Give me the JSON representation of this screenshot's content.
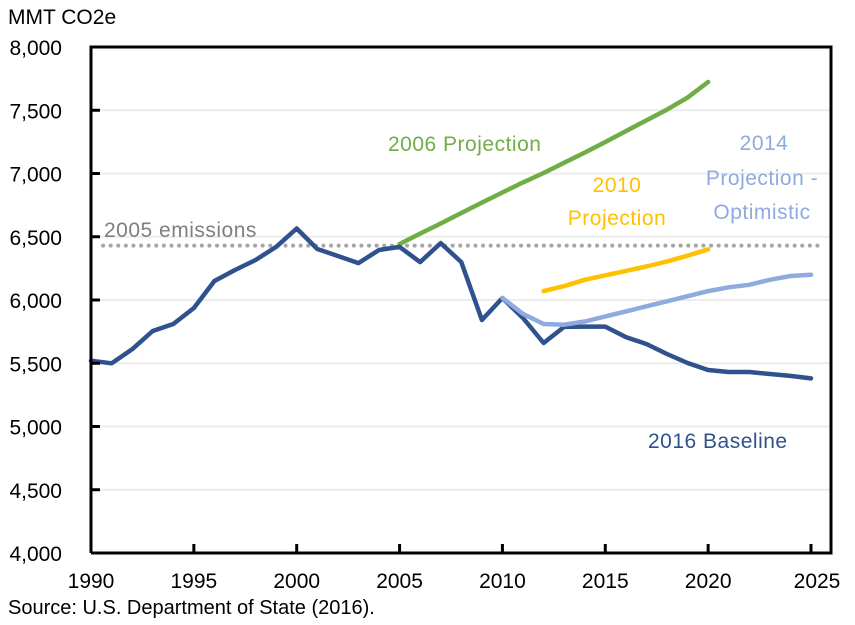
{
  "chart_data": {
    "type": "line",
    "title": "",
    "ylabel": "MMT CO2e",
    "xlabel": "",
    "xlim": [
      1990,
      2025
    ],
    "ylim": [
      4000,
      8000
    ],
    "xticks": [
      1990,
      1995,
      2000,
      2005,
      2010,
      2015,
      2020,
      2025
    ],
    "yticks": [
      4000,
      4500,
      5000,
      5500,
      6000,
      6500,
      7000,
      7500,
      8000
    ],
    "ytick_labels": [
      "4,000",
      "4,500",
      "5,000",
      "5,500",
      "6,000",
      "6,500",
      "7,000",
      "7,500",
      "8,000"
    ],
    "grid": "horizontal",
    "source": "Source: U.S. Department of State (2016).",
    "reference_line": {
      "name": "2005 emissions",
      "value": 6430,
      "color": "#a6a6a6",
      "style": "dotted"
    },
    "series": [
      {
        "name": "2016 Baseline",
        "color": "#2f528f",
        "x": [
          1990,
          1991,
          1992,
          1993,
          1994,
          1995,
          1996,
          1997,
          1998,
          1999,
          2000,
          2001,
          2002,
          2003,
          2004,
          2005,
          2006,
          2007,
          2008,
          2009,
          2010,
          2011,
          2012,
          2013,
          2014,
          2015,
          2016,
          2017,
          2018,
          2019,
          2020,
          2021,
          2022,
          2023,
          2024,
          2025
        ],
        "values": [
          5520,
          5500,
          5610,
          5755,
          5810,
          5937,
          6150,
          6237,
          6316,
          6420,
          6565,
          6403,
          6348,
          6292,
          6395,
          6420,
          6300,
          6450,
          6300,
          5842,
          6016,
          5858,
          5660,
          5787,
          5790,
          5790,
          5707,
          5652,
          5573,
          5502,
          5447,
          5431,
          5431,
          5415,
          5400,
          5380
        ]
      },
      {
        "name": "2006 Projection",
        "color": "#70ad47",
        "x": [
          2005,
          2006,
          2007,
          2008,
          2009,
          2010,
          2011,
          2012,
          2013,
          2014,
          2015,
          2016,
          2017,
          2018,
          2019,
          2020
        ],
        "values": [
          6443,
          6525,
          6605,
          6688,
          6770,
          6850,
          6930,
          7004,
          7085,
          7165,
          7249,
          7335,
          7420,
          7505,
          7600,
          7723
        ]
      },
      {
        "name": "2010 Projection",
        "color": "#ffc000",
        "x": [
          2012,
          2013,
          2014,
          2015,
          2016,
          2017,
          2018,
          2019,
          2020
        ],
        "values": [
          6070,
          6110,
          6160,
          6195,
          6230,
          6265,
          6305,
          6350,
          6400
        ]
      },
      {
        "name": "2014 Projection - Optimistic",
        "color": "#8faadc",
        "x": [
          2010,
          2011,
          2012,
          2013,
          2014,
          2015,
          2016,
          2017,
          2018,
          2019,
          2020,
          2021,
          2022,
          2023,
          2024,
          2025
        ],
        "values": [
          6016,
          5890,
          5810,
          5805,
          5830,
          5870,
          5910,
          5950,
          5990,
          6030,
          6070,
          6100,
          6120,
          6160,
          6190,
          6200
        ]
      }
    ],
    "annotations": [
      {
        "text": "2005 emissions",
        "color": "#7f7f7f"
      },
      {
        "text": "2006 Projection",
        "color": "#70ad47"
      },
      {
        "text_lines": [
          "2010",
          "Projection"
        ],
        "color": "#ffc000"
      },
      {
        "text_lines": [
          "2014",
          "Projection -",
          "Optimistic"
        ],
        "color": "#8faadc"
      },
      {
        "text": "2016 Baseline",
        "color": "#2f528f"
      }
    ]
  }
}
